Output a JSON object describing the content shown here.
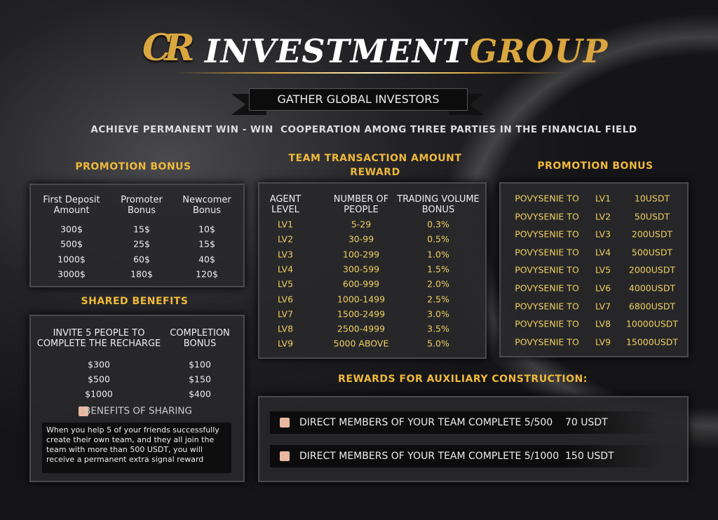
{
  "header": {
    "logo": "CR",
    "title_main": "INVESTMENT",
    "title_accent": "GROUP",
    "banner": "GATHER GLOBAL INVESTORS",
    "tagline": "ACHIEVE PERMANENT WIN - WIN  COOPERATION AMONG THREE PARTIES IN THE FINANCIAL FIELD"
  },
  "promotion_bonus": {
    "title": "PROMOTION BONUS",
    "headers": [
      "First Deposit Amount",
      "Promoter Bonus",
      "Newcomer Bonus"
    ],
    "rows": [
      [
        "300$",
        "15$",
        "10$"
      ],
      [
        "500$",
        "25$",
        "15$"
      ],
      [
        "1000$",
        "60$",
        "40$"
      ],
      [
        "3000$",
        "180$",
        "120$"
      ]
    ]
  },
  "shared_benefits": {
    "title": "SHARED BENEFITS",
    "headers": [
      "INVITE 5 PEOPLE TO COMPLETE THE RECHARGE",
      "COMPLETION BONUS"
    ],
    "rows": [
      [
        "$300",
        "$100"
      ],
      [
        "$500",
        "$150"
      ],
      [
        "$1000",
        "$400"
      ]
    ],
    "benefits_label": "BENEFITS OF SHARING",
    "note": "When you help 5 of your friends successfully create their own team, and they all join the team with more than 500 USDT, you will receive a permanent extra signal reward"
  },
  "team_reward": {
    "title": "TEAM TRANSACTION AMOUNT REWARD",
    "headers": [
      "AGENT LEVEL",
      "NUMBER OF PEOPLE",
      "TRADING VOLUME BONUS"
    ],
    "rows": [
      [
        "LV1",
        "5-29",
        "0.3%"
      ],
      [
        "LV2",
        "30-99",
        "0.5%"
      ],
      [
        "LV3",
        "100-299",
        "1.0%"
      ],
      [
        "LV4",
        "300-599",
        "1.5%"
      ],
      [
        "LV5",
        "600-999",
        "2.0%"
      ],
      [
        "LV6",
        "1000-1499",
        "2.5%"
      ],
      [
        "LV7",
        "1500-2499",
        "3.0%"
      ],
      [
        "LV8",
        "2500-4999",
        "3.5%"
      ],
      [
        "LV9",
        "5000 ABOVE",
        "5.0%"
      ]
    ]
  },
  "level_bonus": {
    "title": "PROMOTION BONUS",
    "rows": [
      [
        "POVYSENIE TO",
        "LV1",
        "10USDT"
      ],
      [
        "POVYSENIE TO",
        "LV2",
        "50USDT"
      ],
      [
        "POVYSENIE TO",
        "LV3",
        "200USDT"
      ],
      [
        "POVYSENIE TO",
        "LV4",
        "500USDT"
      ],
      [
        "POVYSENIE TO",
        "LV5",
        "2000USDT"
      ],
      [
        "POVYSENIE TO",
        "LV6",
        "4000USDT"
      ],
      [
        "POVYSENIE TO",
        "LV7",
        "6800USDT"
      ],
      [
        "POVYSENIE TO",
        "LV8",
        "10000USDT"
      ],
      [
        "POVYSENIE TO",
        "LV9",
        "15000USDT"
      ]
    ]
  },
  "auxiliary": {
    "title": "REWARDS FOR AUXILIARY CONSTRUCTION:",
    "items": [
      "DIRECT MEMBERS OF YOUR TEAM COMPLETE 5/500    70 USDT",
      "DIRECT MEMBERS OF YOUR TEAM COMPLETE 5/1000  150 USDT"
    ]
  }
}
